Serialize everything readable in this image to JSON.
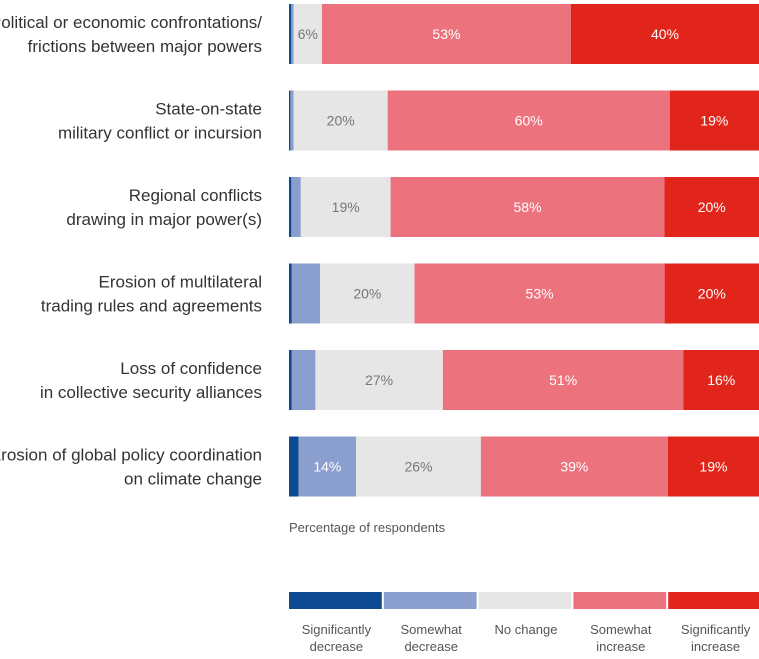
{
  "chart_data": {
    "type": "bar",
    "orientation": "horizontal",
    "stacked": true,
    "categories": [
      [
        "Political or economic confrontations/",
        "frictions between major powers"
      ],
      [
        "State-on-state",
        "military conflict or incursion"
      ],
      [
        "Regional conflicts",
        "drawing in major power(s)"
      ],
      [
        "Erosion of multilateral",
        "trading rules and agreements"
      ],
      [
        "Loss of confidence",
        "in collective security alliances"
      ],
      [
        "Erosion of global policy coordination",
        "on climate change"
      ]
    ],
    "series": [
      {
        "name": [
          "Significantly",
          "decrease"
        ],
        "values": [
          0.5,
          0.3,
          0.5,
          0.6,
          0.6,
          2
        ],
        "color": "#0c4a94"
      },
      {
        "name": [
          "Somewhat",
          "decrease"
        ],
        "values": [
          0.5,
          0.7,
          2,
          6,
          5,
          12
        ],
        "color": "#8b9fce"
      },
      {
        "name": [
          "No change"
        ],
        "values": [
          6,
          20,
          19,
          20,
          27,
          26
        ],
        "color": "#e6e6e6"
      },
      {
        "name": [
          "Somewhat",
          "increase"
        ],
        "values": [
          53,
          60,
          58,
          53,
          51,
          39
        ],
        "color": "#ec727e"
      },
      {
        "name": [
          "Significantly",
          "increase"
        ],
        "values": [
          40,
          19,
          20,
          20,
          16,
          19
        ],
        "color": "#e1251b"
      }
    ],
    "value_labels": [
      [
        null,
        null,
        "6%",
        "53%",
        "40%"
      ],
      [
        null,
        null,
        "20%",
        "60%",
        "19%"
      ],
      [
        null,
        null,
        "19%",
        "58%",
        "20%"
      ],
      [
        null,
        null,
        "20%",
        "53%",
        "20%"
      ],
      [
        null,
        null,
        "27%",
        "51%",
        "16%"
      ],
      [
        null,
        "14%",
        "26%",
        "39%",
        "19%"
      ]
    ],
    "xlabel": "Percentage of respondents",
    "xlim": [
      0,
      100
    ],
    "legend_position": "bottom",
    "grid": false
  }
}
